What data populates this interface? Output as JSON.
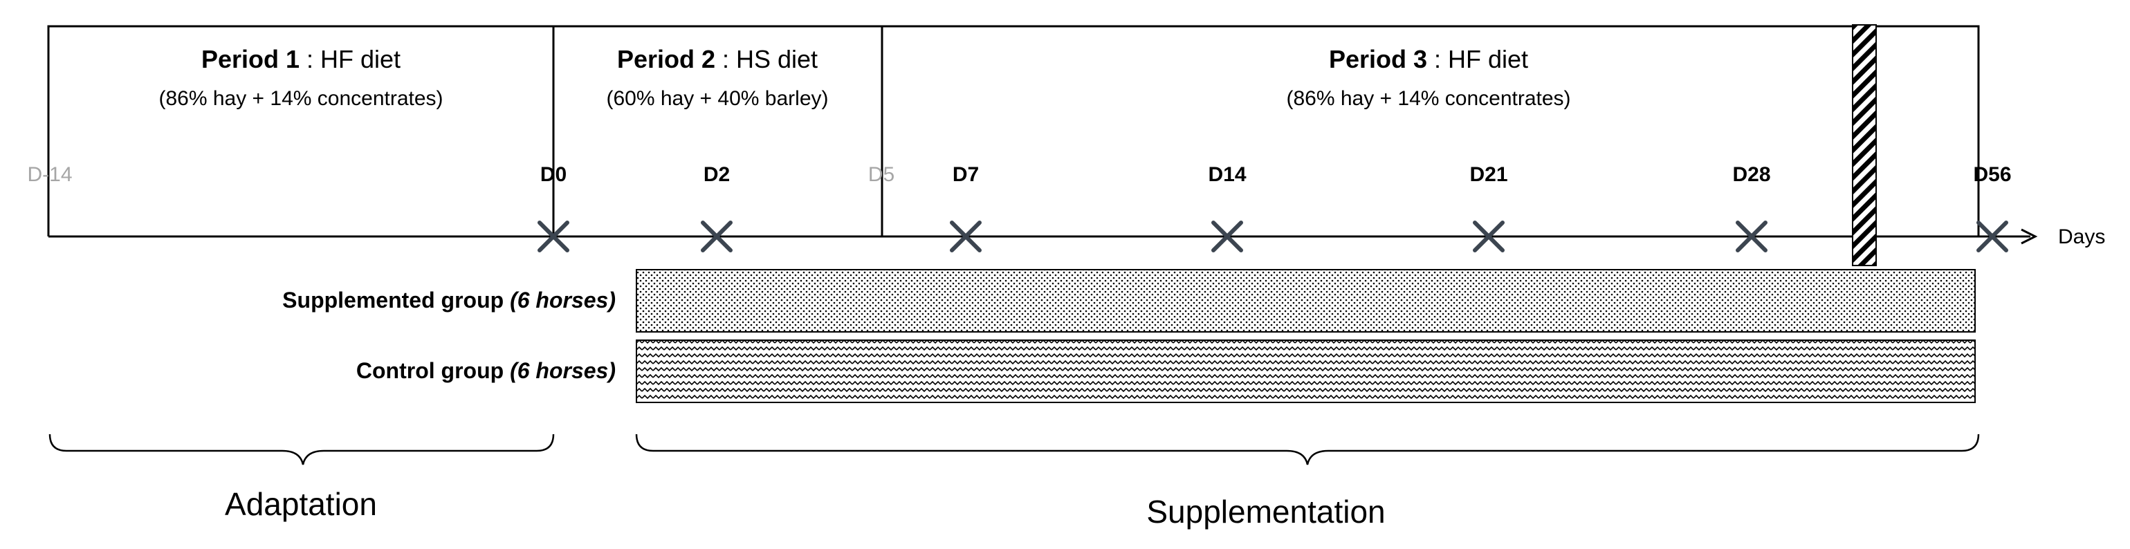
{
  "periods": [
    {
      "name": "Period 1",
      "diet": " : HF diet",
      "composition": "(86% hay + 14% concentrates)"
    },
    {
      "name": "Period 2",
      "diet": " : HS diet",
      "composition": "(60% hay + 40% barley)"
    },
    {
      "name": "Period 3",
      "diet": " : HF diet",
      "composition": "(86% hay + 14% concentrates)"
    }
  ],
  "timeline": {
    "axis_label": "Days",
    "days": [
      "D-14",
      "D0",
      "D2",
      "D5",
      "D7",
      "D14",
      "D21",
      "D28",
      "D56"
    ],
    "sampling_days": [
      "D0",
      "D2",
      "D7",
      "D14",
      "D21",
      "D28",
      "D56"
    ]
  },
  "groups": [
    {
      "name": "Supplemented group",
      "size": "(6 horses)",
      "pattern": "dots"
    },
    {
      "name": "Control group",
      "size": "(6 horses)",
      "pattern": "waves"
    }
  ],
  "phases": {
    "adaptation": "Adaptation",
    "supplementation": "Supplementation"
  },
  "colors": {
    "line": "#000000",
    "marker": "#3c4550",
    "muted_label": "#a6a6a6"
  }
}
